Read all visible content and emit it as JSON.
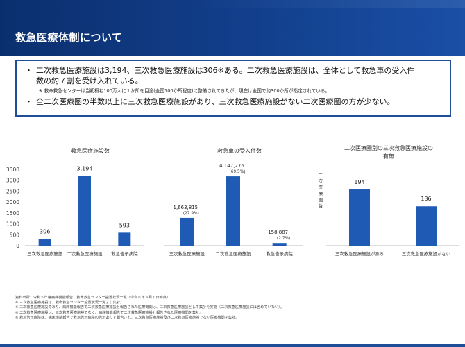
{
  "header": {
    "title": "救急医療体制について",
    "bg_color": "#123f8c"
  },
  "summary": {
    "bullet_symbol": "・",
    "bullet1_line1": "二次救急医療施設は3,194、三次救急医療施設は306※ある。二次救急医療施設は、全体として救急車の受入件",
    "bullet1_line2": "数の約７割を受け入れている。",
    "note": "※ 救命救急センターは当初概ね100万人に１か所を目途(全国100か所程度)に整備されてきたが、現在は全国で約300か所が指定されている。",
    "bullet2": "全二次医療圏の半数以上に三次救急医療施設があり、三次救急医療施設がない二次医療圏の方が少ない。"
  },
  "chart_data": [
    {
      "type": "bar",
      "title": "救急医療施設数",
      "categories": [
        "三次救急医療施設",
        "二次救急医療施設",
        "救急告示病院"
      ],
      "values": [
        306,
        3194,
        593
      ],
      "value_labels": [
        "306",
        "3,194",
        "593"
      ],
      "yticks": [
        "0",
        "500",
        "1000",
        "1500",
        "2000",
        "2500",
        "3000",
        "3500"
      ],
      "ylim": [
        0,
        3500
      ],
      "color": "#1f5bb5",
      "grid": false
    },
    {
      "type": "bar",
      "title": "救急車の受入件数",
      "categories": [
        "三次救急医療施設",
        "二次救急医療施設",
        "救急告示病院"
      ],
      "values": [
        1663815,
        4147276,
        158887
      ],
      "value_labels": [
        "1,663,815",
        "4,147,276",
        "158,887"
      ],
      "percent_labels": [
        "(27.9%)",
        "(69.5%)",
        "(2.7%)"
      ],
      "color": "#1f5bb5",
      "grid": false
    },
    {
      "type": "bar",
      "title_line1": "二次医療圏別の三次救急医療施設の",
      "title_line2": "有無",
      "ylabel": "二次医療圏数",
      "categories": [
        "三次救急医療施設がある",
        "三次救急医療施設がない"
      ],
      "values": [
        194,
        136
      ],
      "value_labels": [
        "194",
        "136"
      ],
      "color": "#1f5bb5",
      "grid": false
    }
  ],
  "footnotes": [
    "資料出所：令和５年度病床機能報告、救命救急センター設置状況一覧（令和６年８月１日時点）",
    "※ 三次救急医療施設は、救命救急センター設置状況一覧より集計。",
    "※ 三次救急医療施設であり、病床機能報告で二次救急医療施設と報告された医療機関は、三次救急医療施設として集計を実施（二次救急医療施設には含めていない）。",
    "※ 二次救急医療施設は、三次救急医療施設でなく、病床機能報告で二次救急医療施設と報告された医療機関を集計。",
    "※ 救急告示病院は、病床機能報告で救急告示病院の告示ありと報告され、三次救急医療施設及び二次救急医療施設でない医療機関を集計。"
  ]
}
